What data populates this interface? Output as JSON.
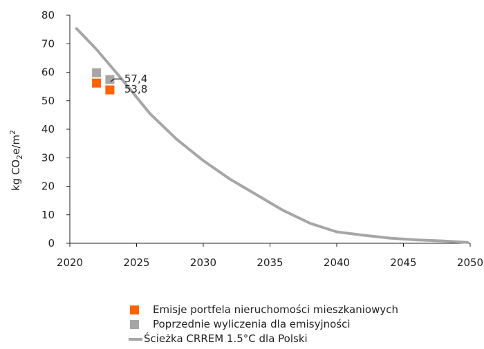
{
  "chart_data": {
    "type": "line",
    "ylabel": "kg CO2e/m2",
    "xlim": [
      2020,
      2050
    ],
    "ylim": [
      0,
      80
    ],
    "x_ticks": [
      "2020",
      "2025",
      "2030",
      "2035",
      "2040",
      "2045",
      "2050"
    ],
    "y_ticks": [
      "0",
      "10",
      "20",
      "30",
      "40",
      "50",
      "60",
      "70",
      "80"
    ],
    "grid": false,
    "legend_position": "bottom",
    "series": [
      {
        "name": "Ścieżka CRREM 1.5°C dla Polski",
        "kind": "line",
        "color": "#a6a6a6",
        "points": [
          [
            2020.5,
            75.3
          ],
          [
            2022,
            68
          ],
          [
            2024,
            57
          ],
          [
            2026,
            45.5
          ],
          [
            2028,
            36.5
          ],
          [
            2030,
            29
          ],
          [
            2032,
            22.5
          ],
          [
            2034,
            17
          ],
          [
            2036,
            11.5
          ],
          [
            2038,
            7
          ],
          [
            2040,
            4
          ],
          [
            2042,
            2.8
          ],
          [
            2044,
            1.8
          ],
          [
            2046,
            1.2
          ],
          [
            2048,
            0.8
          ],
          [
            2049.8,
            0.3
          ]
        ]
      },
      {
        "name": "Emisje portfela nieruchomości mieszkaniowych",
        "kind": "marker",
        "color": "#ff6200",
        "points": [
          [
            2022,
            56.2
          ],
          [
            2023,
            53.8
          ]
        ]
      },
      {
        "name": "Poprzednie wyliczenia dla emisyjności",
        "kind": "marker",
        "color": "#a6a6a6",
        "points": [
          [
            2022,
            59.8
          ],
          [
            2023,
            57.4
          ]
        ]
      }
    ],
    "annotations": [
      {
        "label": "57,4",
        "x": 2023,
        "y": 57.4
      },
      {
        "label": "53,8",
        "x": 2023,
        "y": 53.8
      }
    ]
  },
  "legend": [
    {
      "label": "Emisje portfela nieruchomości mieszkaniowych",
      "color": "#ff6200",
      "kind": "square"
    },
    {
      "label": "Poprzednie wyliczenia dla emisyjności",
      "color": "#a6a6a6",
      "kind": "square"
    },
    {
      "label": "Ścieżka CRREM 1.5°C dla Polski",
      "color": "#a6a6a6",
      "kind": "line"
    }
  ]
}
